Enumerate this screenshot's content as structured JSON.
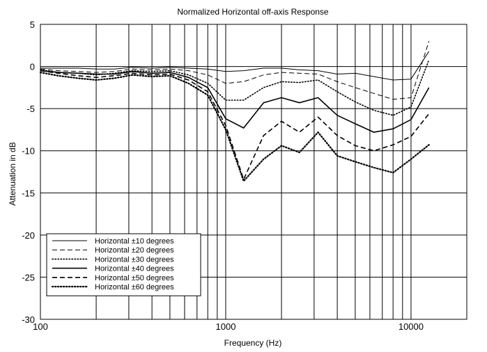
{
  "chart_data": {
    "type": "line",
    "title": "Normalized Horizontal off-axis Response",
    "xlabel": "Frequency (Hz)",
    "ylabel": "Attenuation in dB",
    "xscale": "log",
    "xlim": [
      100,
      20000
    ],
    "ylim": [
      -30,
      5
    ],
    "xticks": [
      100,
      1000,
      10000
    ],
    "xtick_labels": [
      "100",
      "1000",
      "10000"
    ],
    "yticks": [
      5,
      0,
      -5,
      -10,
      -15,
      -20,
      -25,
      -30
    ],
    "ytick_labels": [
      "5",
      "0",
      "-5",
      "-10",
      "-15",
      "-20",
      "-25",
      "-30"
    ],
    "grid": true,
    "legend_position": "bottom-left",
    "series": [
      {
        "name": "Horizontal ±10 degrees",
        "style": "solid",
        "weight": "thin",
        "x": [
          100,
          125,
          160,
          200,
          250,
          315,
          400,
          500,
          630,
          800,
          1000,
          1250,
          1600,
          2000,
          2500,
          3150,
          4000,
          5000,
          6300,
          8000,
          10000,
          12500
        ],
        "y": [
          -0.2,
          -0.2,
          -0.2,
          -0.3,
          -0.3,
          -0.1,
          -0.2,
          -0.1,
          -0.2,
          -0.3,
          -0.6,
          -0.5,
          -0.2,
          -0.2,
          -0.4,
          -0.5,
          -0.9,
          -0.8,
          -1.2,
          -1.6,
          -1.5,
          1.8
        ]
      },
      {
        "name": "Horizontal ±20 degrees",
        "style": "dashed",
        "weight": "thin",
        "x": [
          100,
          125,
          160,
          200,
          250,
          315,
          400,
          500,
          630,
          800,
          1000,
          1250,
          1600,
          2000,
          2500,
          3150,
          4000,
          5000,
          6300,
          8000,
          10000,
          12500
        ],
        "y": [
          -0.3,
          -0.5,
          -0.6,
          -0.7,
          -0.6,
          -0.3,
          -0.4,
          -0.3,
          -0.5,
          -1.0,
          -2.0,
          -1.8,
          -1.0,
          -0.7,
          -0.8,
          -0.9,
          -1.8,
          -2.5,
          -3.2,
          -3.9,
          -3.7,
          3.0
        ]
      },
      {
        "name": "Horizontal ±30 degrees",
        "style": "dotted",
        "weight": "thin",
        "x": [
          100,
          125,
          160,
          200,
          250,
          315,
          400,
          500,
          630,
          800,
          1000,
          1250,
          1600,
          2000,
          2500,
          3150,
          4000,
          5000,
          6300,
          8000,
          10000,
          12500
        ],
        "y": [
          -0.4,
          -0.7,
          -0.8,
          -1.0,
          -0.8,
          -0.5,
          -0.6,
          -0.5,
          -1.0,
          -2.0,
          -4.0,
          -4.0,
          -2.5,
          -1.8,
          -1.9,
          -1.6,
          -3.0,
          -4.2,
          -5.2,
          -5.8,
          -4.8,
          0.8
        ]
      },
      {
        "name": "Horizontal ±40 degrees",
        "style": "solid",
        "weight": "thick",
        "x": [
          100,
          125,
          160,
          200,
          250,
          315,
          400,
          500,
          630,
          800,
          1000,
          1250,
          1600,
          2000,
          2500,
          3150,
          4000,
          5000,
          6300,
          8000,
          10000,
          12500
        ],
        "y": [
          -0.5,
          -0.7,
          -0.8,
          -0.9,
          -0.9,
          -0.6,
          -0.8,
          -0.7,
          -1.3,
          -2.5,
          -6.2,
          -7.3,
          -4.3,
          -3.7,
          -4.3,
          -3.7,
          -5.8,
          -6.8,
          -7.8,
          -7.4,
          -6.3,
          -2.5
        ]
      },
      {
        "name": "Horizontal ±50 degrees",
        "style": "dashed",
        "weight": "thick",
        "x": [
          100,
          125,
          160,
          200,
          250,
          315,
          400,
          500,
          630,
          800,
          1000,
          1250,
          1600,
          2000,
          2500,
          3150,
          4000,
          5000,
          6300,
          8000,
          10000,
          12500
        ],
        "y": [
          -0.5,
          -0.8,
          -1.1,
          -1.3,
          -1.1,
          -0.8,
          -1.0,
          -0.9,
          -1.6,
          -3.0,
          -7.0,
          -13.4,
          -8.2,
          -6.5,
          -7.8,
          -6.0,
          -8.2,
          -9.4,
          -10.0,
          -9.3,
          -8.3,
          -5.6
        ]
      },
      {
        "name": "Horizontal ±60 degrees",
        "style": "dotted",
        "weight": "thick",
        "x": [
          100,
          125,
          160,
          200,
          250,
          315,
          400,
          500,
          630,
          800,
          1000,
          1250,
          1600,
          2000,
          2500,
          3150,
          4000,
          5000,
          6300,
          8000,
          10000,
          12500
        ],
        "y": [
          -0.7,
          -1.1,
          -1.4,
          -1.6,
          -1.4,
          -1.0,
          -1.2,
          -1.1,
          -2.0,
          -3.4,
          -7.5,
          -13.6,
          -11.0,
          -9.4,
          -10.2,
          -7.8,
          -10.6,
          -11.3,
          -12.0,
          -12.6,
          -11.0,
          -9.3
        ]
      }
    ]
  }
}
